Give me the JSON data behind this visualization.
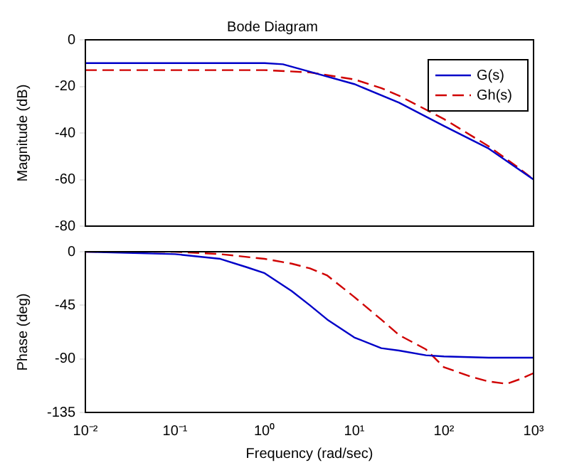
{
  "chart_data": [
    {
      "type": "line",
      "title": "Bode Diagram",
      "ylabel": "Magnitude (dB)",
      "log": "x",
      "grid": false,
      "legend": "top right",
      "tick_labels": "y",
      "xlim": [
        0.01,
        1000
      ],
      "xticks": [
        {
          "value": 0.01,
          "label": null
        },
        {
          "value": 0.1,
          "label": null
        },
        {
          "value": 1,
          "label": null
        },
        {
          "value": 10,
          "label": null
        },
        {
          "value": 100,
          "label": null
        },
        {
          "value": 1000,
          "label": null
        }
      ],
      "ylim": [
        -80,
        0
      ],
      "yticks": [
        0,
        -20,
        -40,
        -60,
        -80
      ],
      "series": [
        {
          "name": "G(s)",
          "color": "#0000c8",
          "line_style": "solid",
          "x": [
            0.01,
            1,
            1.6,
            3.2,
            10,
            31.6,
            100,
            316,
            1000
          ],
          "values": [
            -10,
            -10,
            -10.5,
            -13.7,
            -19,
            -27,
            -37,
            -46.7,
            -60
          ]
        },
        {
          "name": "Gh(s)",
          "color": "#d00000",
          "line_style": "dashed",
          "x": [
            0.01,
            1,
            3.2,
            10,
            20,
            31.6,
            100,
            316,
            631,
            1000
          ],
          "values": [
            -13,
            -13,
            -14,
            -17,
            -20.7,
            -24,
            -34,
            -45.7,
            -54,
            -60
          ]
        }
      ]
    },
    {
      "type": "line",
      "xlabel": "Frequency (rad/sec)",
      "ylabel": "Phase (deg)",
      "log": "x",
      "grid": false,
      "xlim": [
        0.01,
        1000
      ],
      "xticks": [
        {
          "value": 0.01,
          "label": "10⁻²"
        },
        {
          "value": 0.1,
          "label": "10⁻¹"
        },
        {
          "value": 1,
          "label": "10⁰"
        },
        {
          "value": 10,
          "label": "10¹"
        },
        {
          "value": 100,
          "label": "10²"
        },
        {
          "value": 1000,
          "label": "10³"
        }
      ],
      "ylim": [
        -135,
        0
      ],
      "yticks": [
        0,
        -45,
        -90,
        -135
      ],
      "series": [
        {
          "color": "#0000c8",
          "line_style": "solid",
          "x": [
            0.01,
            0.1,
            0.32,
            0.63,
            1,
            2,
            3.2,
            5,
            10,
            20,
            31.6,
            63,
            100,
            316,
            1000
          ],
          "values": [
            0,
            -2,
            -6,
            -13,
            -18,
            -33,
            -45,
            -57,
            -72,
            -81,
            -83,
            -87,
            -88,
            -89,
            -89
          ]
        },
        {
          "color": "#d00000",
          "line_style": "dashed",
          "x": [
            0.01,
            0.1,
            0.32,
            1,
            2,
            3.2,
            5,
            10,
            20,
            31.6,
            63,
            100,
            200,
            316,
            501,
            708,
            1000
          ],
          "values": [
            0,
            0,
            -2,
            -6,
            -10,
            -14,
            -20,
            -38,
            -57,
            -70,
            -82,
            -97,
            -105,
            -109,
            -111,
            -107,
            -102
          ]
        }
      ]
    }
  ]
}
